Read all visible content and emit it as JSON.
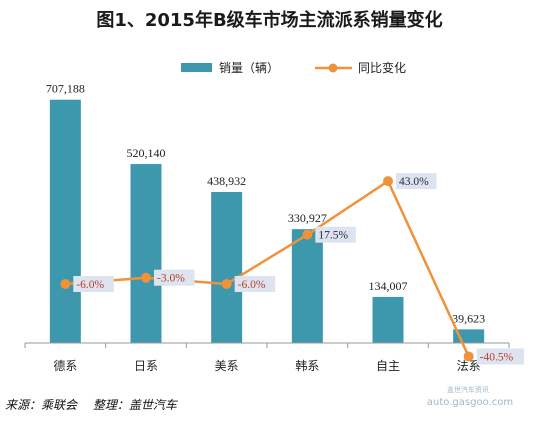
{
  "chart_data": {
    "type": "bar",
    "title": "图1、2015年B级车市场主流派系销量变化",
    "categories": [
      "德系",
      "日系",
      "美系",
      "韩系",
      "自主",
      "法系"
    ],
    "series": [
      {
        "name": "销量（辆）",
        "type": "bar",
        "values": [
          707188,
          520140,
          438932,
          330927,
          134007,
          39623
        ],
        "labels": [
          "707,188",
          "520,140",
          "438,932",
          "330,927",
          "134,007",
          "39,623"
        ]
      },
      {
        "name": "同比变化",
        "type": "line",
        "values": [
          -6.0,
          -3.0,
          -6.0,
          17.5,
          43.0,
          -40.5
        ],
        "labels": [
          "-6.0%",
          "-3.0%",
          "-6.0%",
          "17.5%",
          "43.0%",
          "-40.5%"
        ]
      }
    ],
    "legend": "top-right"
  },
  "colors": {
    "bar": "#3d97ad",
    "line": "#f0923a",
    "label_box": "#dde4ef",
    "negative_text": "#c0392b",
    "positive_text": "#1f2a44"
  },
  "footer": {
    "source": "来源：乘联会　 整理：盖世汽车",
    "watermark_top": "盖世汽车资讯",
    "watermark_bottom": "auto.gasgoo.com"
  }
}
